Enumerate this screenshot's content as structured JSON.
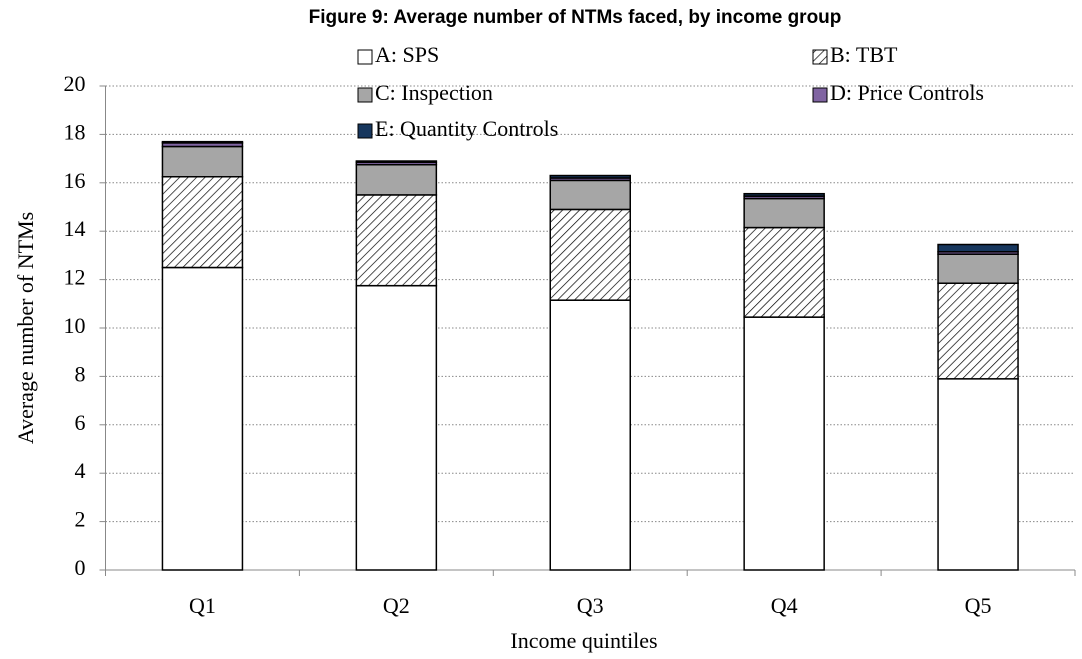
{
  "chart_data": {
    "type": "stacked_bar",
    "title": "Figure 9: Average number of NTMs faced, by income group",
    "x_label": "Income quintiles",
    "y_label": "Average number of NTMs",
    "categories": [
      "Q1",
      "Q2",
      "Q3",
      "Q4",
      "Q5"
    ],
    "series": [
      {
        "name": "A: SPS",
        "color": "#ffffff",
        "values": [
          12.5,
          11.75,
          11.15,
          10.45,
          7.9
        ]
      },
      {
        "name": "B: TBT",
        "color": "#ffffff",
        "pattern": "diagonal-hatch",
        "values": [
          3.75,
          3.75,
          3.75,
          3.7,
          3.95
        ]
      },
      {
        "name": "C: Inspection",
        "color": "#a6a6a6",
        "values": [
          1.25,
          1.25,
          1.2,
          1.2,
          1.2
        ]
      },
      {
        "name": "D: Price Controls",
        "color": "#8064a2",
        "values": [
          0.15,
          0.1,
          0.1,
          0.1,
          0.1
        ]
      },
      {
        "name": "E: Quantity Controls",
        "color": "#17375e",
        "values": [
          0.05,
          0.05,
          0.1,
          0.1,
          0.3
        ]
      }
    ],
    "ylim": [
      0,
      20
    ],
    "yticks": [
      0,
      2,
      4,
      6,
      8,
      10,
      12,
      14,
      16,
      18,
      20
    ],
    "grid": true
  }
}
